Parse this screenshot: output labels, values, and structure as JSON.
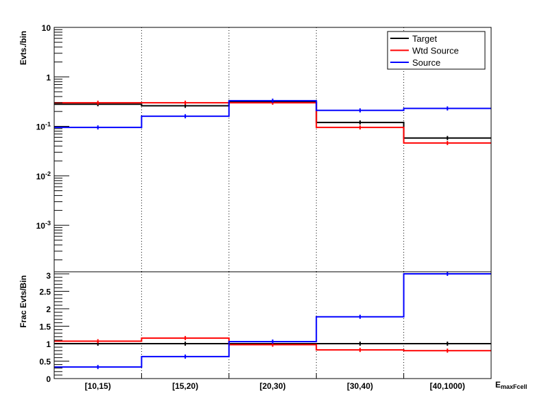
{
  "chart_data": [
    {
      "type": "line",
      "subtype": "step-histogram",
      "ylabel": "Evts./bin",
      "yscale": "log",
      "ylim": [
        0.000115,
        10
      ],
      "yticks": [
        {
          "value": 10,
          "base": "10",
          "exp": ""
        },
        {
          "value": 1,
          "base": "1",
          "exp": ""
        },
        {
          "value": 0.1,
          "base": "10",
          "exp": "-1"
        },
        {
          "value": 0.01,
          "base": "10",
          "exp": "-2"
        },
        {
          "value": 0.001,
          "base": "10",
          "exp": "-3"
        }
      ],
      "categories": [
        "[10,15)",
        "[15,20)",
        "[20,30)",
        "[30,40)",
        "[40,1000)"
      ],
      "grid": "vertical dotted at bin edges",
      "legend": {
        "placement": "top-right",
        "entries": [
          "Target",
          "Wtd Source",
          "Source"
        ]
      },
      "series": [
        {
          "name": "Target",
          "color": "#000000",
          "values": [
            0.28,
            0.26,
            0.31,
            0.12,
            0.058
          ]
        },
        {
          "name": "Wtd Source",
          "color": "#ff0000",
          "values": [
            0.3,
            0.3,
            0.3,
            0.095,
            0.046
          ]
        },
        {
          "name": "Source",
          "color": "#0000ff",
          "values": [
            0.095,
            0.16,
            0.33,
            0.21,
            0.23
          ]
        }
      ]
    },
    {
      "type": "line",
      "subtype": "step-histogram",
      "ylabel": "Frac Evts/Bin",
      "xlabel": "E",
      "xlabel_sub": "maxFcell",
      "yscale": "linear",
      "ylim": [
        0,
        3
      ],
      "yticks": [
        "0",
        "0.5",
        "1",
        "1.5",
        "2",
        "2.5",
        "3"
      ],
      "categories": [
        "[10,15)",
        "[15,20)",
        "[20,30)",
        "[30,40)",
        "[40,1000)"
      ],
      "grid": "vertical dotted at bin edges",
      "series": [
        {
          "name": "Target",
          "color": "#000000",
          "values": [
            1.0,
            1.0,
            1.0,
            1.0,
            1.0
          ]
        },
        {
          "name": "Wtd Source",
          "color": "#ff0000",
          "values": [
            1.07,
            1.16,
            0.97,
            0.82,
            0.8
          ]
        },
        {
          "name": "Source",
          "color": "#0000ff",
          "values": [
            0.33,
            0.63,
            1.06,
            1.77,
            3.0
          ]
        }
      ]
    }
  ]
}
